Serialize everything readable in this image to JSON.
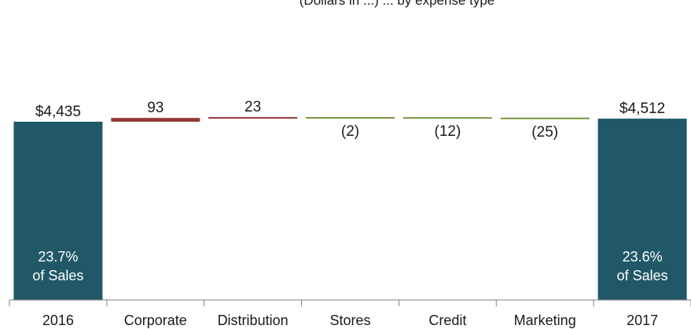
{
  "chart_data": {
    "type": "bar",
    "subtype": "waterfall",
    "title": "(Dollars in ...) ... by expense type",
    "categories": [
      "2016",
      "Corporate",
      "Distribution",
      "Stores",
      "Credit",
      "Marketing",
      "2017"
    ],
    "values": [
      4435,
      93,
      23,
      -2,
      -12,
      -25,
      4512
    ],
    "kinds": [
      "total",
      "delta",
      "delta",
      "delta",
      "delta",
      "delta",
      "total"
    ],
    "value_labels": [
      "$4,435",
      "93",
      "23",
      "(2)",
      "(12)",
      "(25)",
      "$4,512"
    ],
    "inner_labels": [
      {
        "index": 0,
        "line1": "23.7%",
        "line2": "of Sales"
      },
      {
        "index": 6,
        "line1": "23.6%",
        "line2": "of Sales"
      }
    ],
    "colors": {
      "total": "#215868",
      "increase": "#953735",
      "decrease": "#77933c"
    },
    "grid": false
  }
}
